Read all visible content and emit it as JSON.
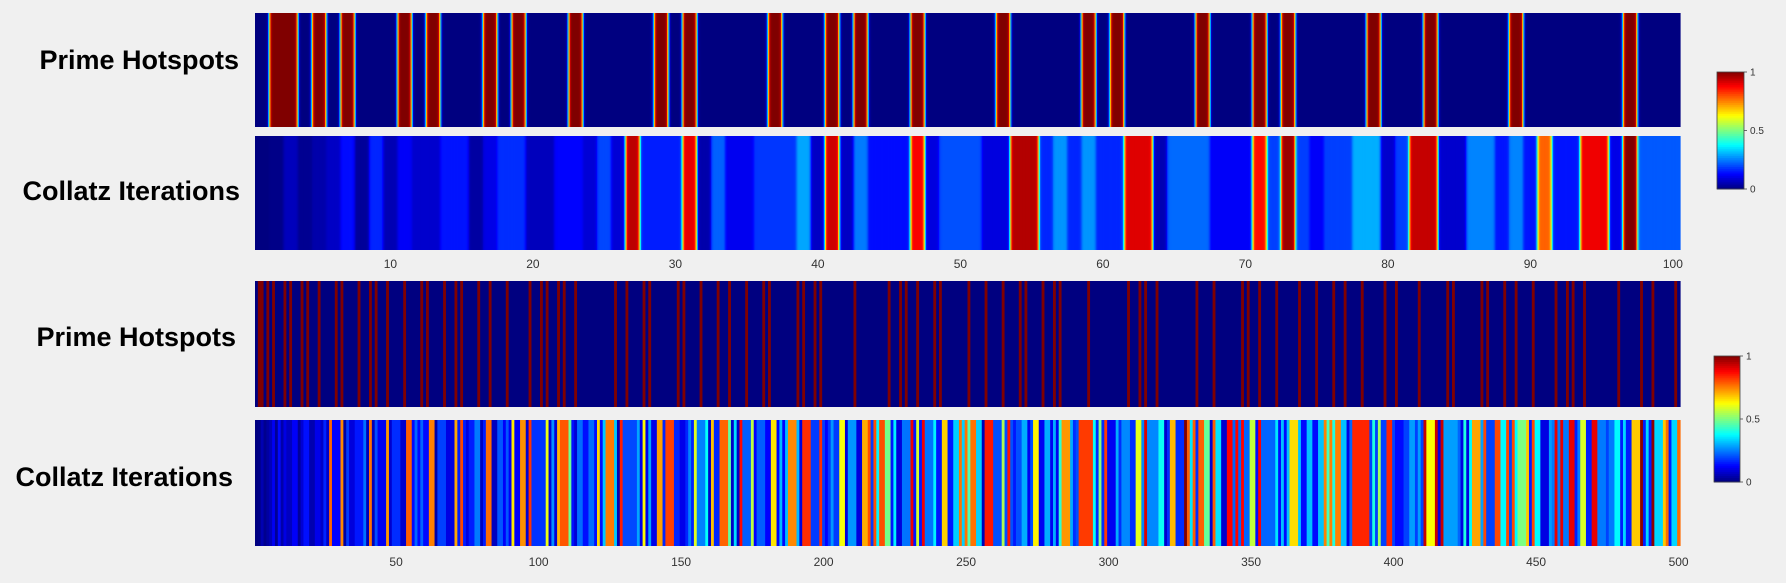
{
  "chart_data": [
    {
      "type": "heatmap",
      "title": "",
      "rows": [
        {
          "label": "Prime Hotspots"
        },
        {
          "label": "Collatz Iterations"
        }
      ],
      "x_min": 1,
      "x_max": 100,
      "xticks": [
        10,
        20,
        30,
        40,
        50,
        60,
        70,
        80,
        90,
        100
      ],
      "colormap": "jet",
      "clim": [
        0,
        1
      ],
      "colorbar_ticks": [
        "0",
        "0.5",
        "1"
      ]
    },
    {
      "type": "heatmap",
      "title": "",
      "rows": [
        {
          "label": "Prime Hotspots"
        },
        {
          "label": "Collatz Iterations"
        }
      ],
      "x_min": 1,
      "x_max": 500,
      "xticks": [
        50,
        100,
        150,
        200,
        250,
        300,
        350,
        400,
        450,
        500
      ],
      "colormap": "jet",
      "clim": [
        0,
        1
      ],
      "colorbar_ticks": [
        "0",
        "0.5",
        "1"
      ]
    }
  ]
}
